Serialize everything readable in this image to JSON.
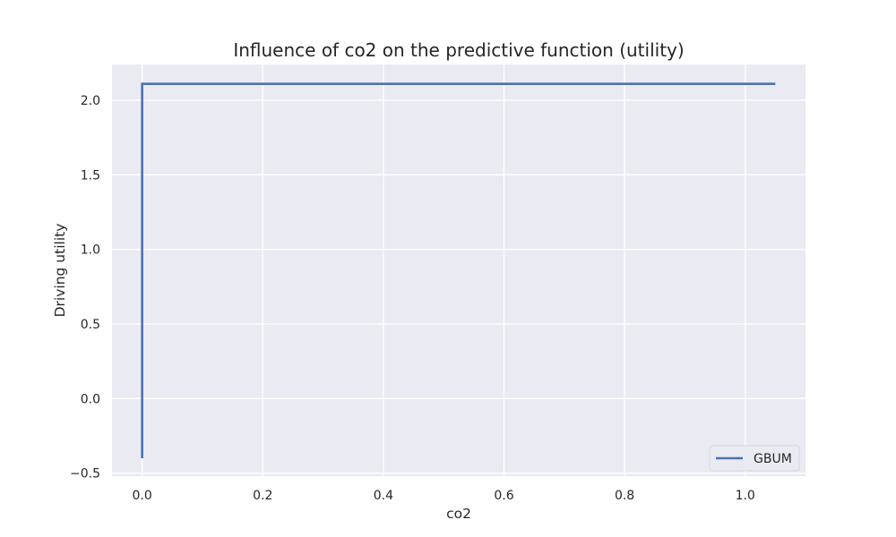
{
  "chart_data": {
    "type": "line",
    "title": "Influence of co2 on the predictive function (utility)",
    "xlabel": "co2",
    "ylabel": "Driving utility",
    "xlim": [
      -0.05,
      1.1
    ],
    "ylim": [
      -0.52,
      2.24
    ],
    "xticks": [
      0.0,
      0.2,
      0.4,
      0.6,
      0.8,
      1.0
    ],
    "xtick_labels": [
      "0.0",
      "0.2",
      "0.4",
      "0.6",
      "0.8",
      "1.0"
    ],
    "yticks": [
      -0.5,
      0.0,
      0.5,
      1.0,
      1.5,
      2.0
    ],
    "ytick_labels": [
      "−0.5",
      "0.0",
      "0.5",
      "1.0",
      "1.5",
      "2.0"
    ],
    "grid": true,
    "legend_position": "lower-right",
    "series": [
      {
        "name": "GBUM",
        "color": "#4c72b0",
        "x": [
          0.0,
          0.0,
          1.05
        ],
        "y": [
          -0.4,
          2.11,
          2.11
        ]
      }
    ]
  },
  "colors": {
    "plot_background": "#eaeaf2",
    "grid": "#ffffff",
    "text": "#262626"
  }
}
